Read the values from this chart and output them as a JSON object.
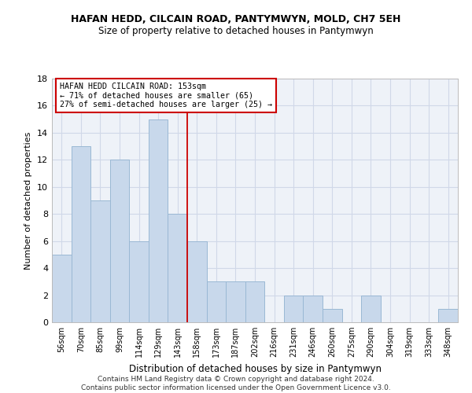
{
  "title1": "HAFAN HEDD, CILCAIN ROAD, PANTYMWYN, MOLD, CH7 5EH",
  "title2": "Size of property relative to detached houses in Pantymwyn",
  "xlabel": "Distribution of detached houses by size in Pantymwyn",
  "ylabel": "Number of detached properties",
  "bin_labels": [
    "56sqm",
    "70sqm",
    "85sqm",
    "99sqm",
    "114sqm",
    "129sqm",
    "143sqm",
    "158sqm",
    "173sqm",
    "187sqm",
    "202sqm",
    "216sqm",
    "231sqm",
    "246sqm",
    "260sqm",
    "275sqm",
    "290sqm",
    "304sqm",
    "319sqm",
    "333sqm",
    "348sqm"
  ],
  "bar_values": [
    5,
    13,
    9,
    12,
    6,
    15,
    8,
    6,
    3,
    3,
    3,
    0,
    2,
    2,
    1,
    0,
    2,
    0,
    0,
    0,
    1
  ],
  "bar_color": "#c8d8eb",
  "bar_edgecolor": "#9ab8d4",
  "vline_x": 6.5,
  "vline_color": "#cc0000",
  "annotation_line1": "HAFAN HEDD CILCAIN ROAD: 153sqm",
  "annotation_line2": "← 71% of detached houses are smaller (65)",
  "annotation_line3": "27% of semi-detached houses are larger (25) →",
  "annotation_box_edgecolor": "#cc0000",
  "annotation_fontsize": 7.2,
  "ylim": [
    0,
    18
  ],
  "yticks": [
    0,
    2,
    4,
    6,
    8,
    10,
    12,
    14,
    16,
    18
  ],
  "footer": "Contains HM Land Registry data © Crown copyright and database right 2024.\nContains public sector information licensed under the Open Government Licence v3.0.",
  "grid_color": "#d0d8e8",
  "bg_color": "#eef2f8"
}
